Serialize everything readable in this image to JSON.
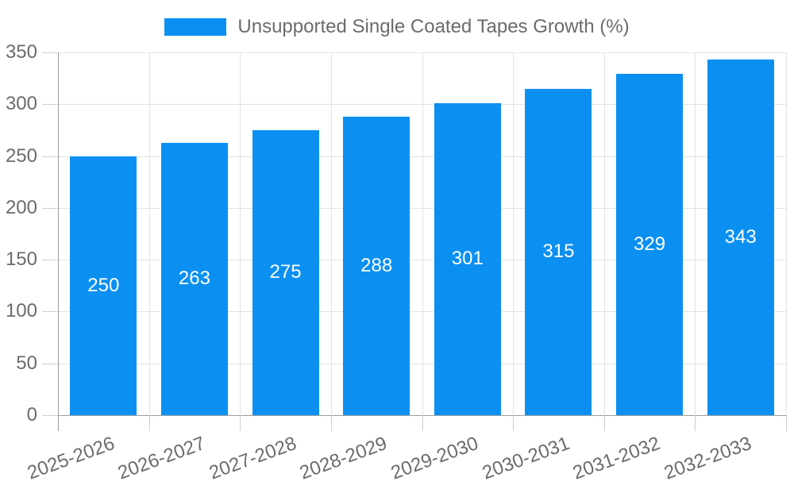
{
  "chart_data": {
    "type": "bar",
    "title": "",
    "xlabel": "",
    "ylabel": "",
    "categories": [
      "2025-2026",
      "2026-2027",
      "2027-2028",
      "2028-2029",
      "2029-2030",
      "2030-2031",
      "2031-2032",
      "2032-2033"
    ],
    "values": [
      250,
      263,
      275,
      288,
      301,
      315,
      329,
      343
    ],
    "series": [
      {
        "name": "Unsupported Single Coated Tapes Growth (%)",
        "values": [
          250,
          263,
          275,
          288,
          301,
          315,
          329,
          343
        ]
      }
    ],
    "yticks": [
      "0",
      "50",
      "100",
      "150",
      "200",
      "250",
      "300",
      "350"
    ],
    "ylim": [
      0,
      350
    ],
    "ytick_step": 50,
    "grid": true,
    "legend_position": "top",
    "x_label_rotation_deg": -20,
    "value_labels": "centered-inside-bars",
    "colors": {
      "bar": "#0b90f2",
      "value_label": "#ffffff",
      "grid": "#e3e3e3",
      "axis": "#9d9d9d",
      "tick": "#cfcfcf",
      "text": "#6b6b6b"
    }
  }
}
